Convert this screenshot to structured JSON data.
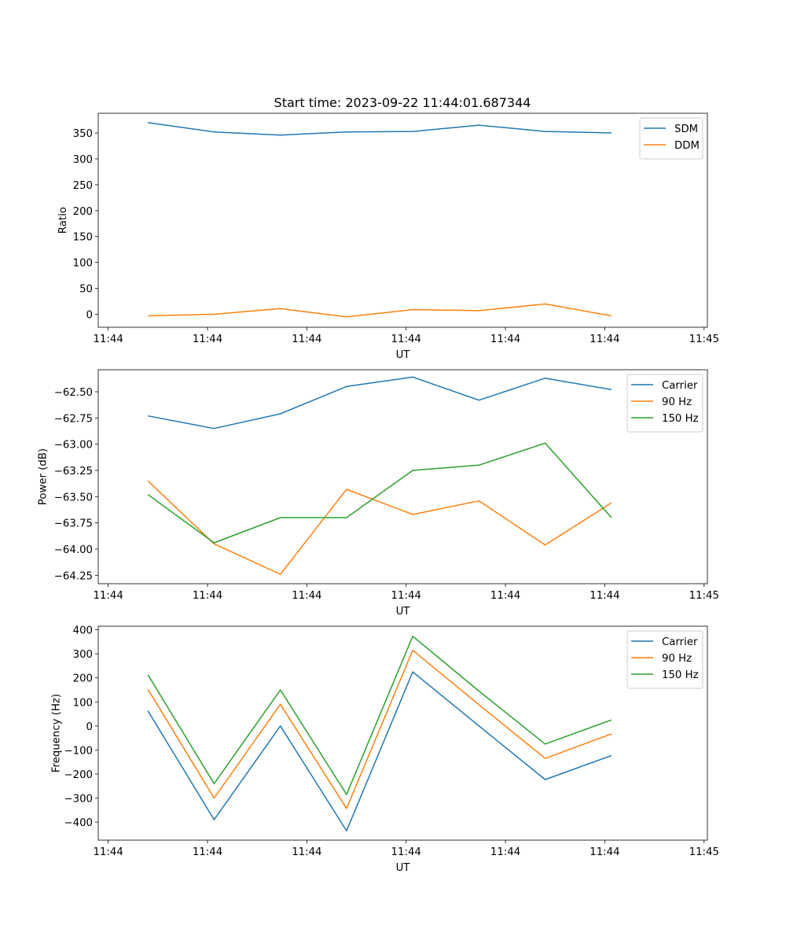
{
  "figure_title": "Start time: 2023-09-22 11:44:01.687344",
  "colors": {
    "c0": "#1f77b4",
    "c1": "#ff7f0e",
    "c2": "#2ca02c",
    "axis": "#000000",
    "legend_border": "#cccccc"
  },
  "chart_data": [
    {
      "type": "line",
      "title": "Start time: 2023-09-22 11:44:01.687344",
      "xlabel": "UT",
      "ylabel": "Ratio",
      "x_sec": [
        6,
        16,
        26,
        36,
        46,
        56,
        66,
        76
      ],
      "xlim_sec": [
        -1.5,
        90.5
      ],
      "xticks": [
        {
          "sec": 0,
          "label": "11:44"
        },
        {
          "sec": 15,
          "label": "11:44"
        },
        {
          "sec": 30,
          "label": "11:44"
        },
        {
          "sec": 45,
          "label": "11:44"
        },
        {
          "sec": 60,
          "label": "11:44"
        },
        {
          "sec": 75,
          "label": "11:44"
        },
        {
          "sec": 90,
          "label": "11:45"
        }
      ],
      "ylim": [
        -25,
        388
      ],
      "yticks": [
        0,
        50,
        100,
        150,
        200,
        250,
        300,
        350
      ],
      "ytick_labels": [
        "0",
        "50",
        "100",
        "150",
        "200",
        "250",
        "300",
        "350"
      ],
      "legend_loc": "upper right",
      "series": [
        {
          "name": "SDM",
          "color": "#1f77b4",
          "values": [
            370,
            352,
            346,
            352,
            353,
            365,
            353,
            350
          ]
        },
        {
          "name": "DDM",
          "color": "#ff7f0e",
          "values": [
            -3,
            0,
            11,
            -5,
            9,
            7,
            20,
            -3
          ]
        }
      ]
    },
    {
      "type": "line",
      "title": "",
      "xlabel": "UT",
      "ylabel": "Power (dB)",
      "x_sec": [
        6,
        16,
        26,
        36,
        46,
        56,
        66,
        76
      ],
      "xlim_sec": [
        -1.5,
        90.5
      ],
      "xticks": [
        {
          "sec": 0,
          "label": "11:44"
        },
        {
          "sec": 15,
          "label": "11:44"
        },
        {
          "sec": 30,
          "label": "11:44"
        },
        {
          "sec": 45,
          "label": "11:44"
        },
        {
          "sec": 60,
          "label": "11:44"
        },
        {
          "sec": 75,
          "label": "11:44"
        },
        {
          "sec": 90,
          "label": "11:45"
        }
      ],
      "ylim": [
        -64.33,
        -62.29
      ],
      "yticks": [
        -64.25,
        -64.0,
        -63.75,
        -63.5,
        -63.25,
        -63.0,
        -62.75,
        -62.5
      ],
      "ytick_labels": [
        "−64.25",
        "−64.00",
        "−63.75",
        "−63.50",
        "−63.25",
        "−63.00",
        "−62.75",
        "−62.50"
      ],
      "legend_loc": "upper right",
      "series": [
        {
          "name": "Carrier",
          "color": "#1f77b4",
          "values": [
            -62.73,
            -62.85,
            -62.71,
            -62.45,
            -62.36,
            -62.58,
            -62.37,
            -62.48
          ]
        },
        {
          "name": "90 Hz",
          "color": "#ff7f0e",
          "values": [
            -63.35,
            -63.95,
            -64.24,
            -63.43,
            -63.67,
            -63.54,
            -63.96,
            -63.56
          ]
        },
        {
          "name": "150 Hz",
          "color": "#2ca02c",
          "values": [
            -63.48,
            -63.94,
            -63.7,
            -63.7,
            -63.25,
            -63.2,
            -62.99,
            -63.7
          ]
        }
      ]
    },
    {
      "type": "line",
      "title": "",
      "xlabel": "UT",
      "ylabel": "Frequency (Hz)",
      "x_sec": [
        6,
        16,
        26,
        36,
        46,
        56,
        66,
        76
      ],
      "xlim_sec": [
        -1.5,
        90.5
      ],
      "xticks": [
        {
          "sec": 0,
          "label": "11:44"
        },
        {
          "sec": 15,
          "label": "11:44"
        },
        {
          "sec": 30,
          "label": "11:44"
        },
        {
          "sec": 45,
          "label": "11:44"
        },
        {
          "sec": 60,
          "label": "11:44"
        },
        {
          "sec": 75,
          "label": "11:44"
        },
        {
          "sec": 90,
          "label": "11:45"
        }
      ],
      "ylim": [
        -475,
        415
      ],
      "yticks": [
        -400,
        -300,
        -200,
        -100,
        0,
        100,
        200,
        300,
        400
      ],
      "ytick_labels": [
        "−400",
        "−300",
        "−200",
        "−100",
        "0",
        "100",
        "200",
        "300",
        "400"
      ],
      "legend_loc": "upper right",
      "series": [
        {
          "name": "Carrier",
          "color": "#1f77b4",
          "values": [
            63,
            -390,
            0,
            -436,
            225,
            0,
            -223,
            -123
          ]
        },
        {
          "name": "90 Hz",
          "color": "#ff7f0e",
          "values": [
            153,
            -300,
            90,
            -343,
            315,
            88,
            -135,
            -33
          ]
        },
        {
          "name": "150 Hz",
          "color": "#2ca02c",
          "values": [
            213,
            -240,
            150,
            -285,
            373,
            145,
            -75,
            25
          ]
        }
      ]
    }
  ]
}
